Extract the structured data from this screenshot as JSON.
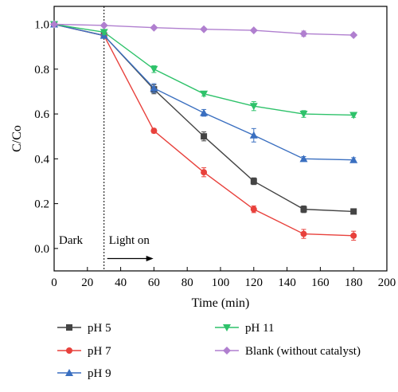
{
  "chart_data": {
    "type": "line",
    "xlabel": "Time (min)",
    "ylabel": "C/Co",
    "xlim": [
      0,
      200
    ],
    "ylim": [
      -0.1,
      1.08
    ],
    "xticks": [
      0,
      20,
      40,
      60,
      80,
      100,
      120,
      140,
      160,
      180,
      200
    ],
    "yticks": [
      0.0,
      0.2,
      0.4,
      0.6,
      0.8,
      1.0
    ],
    "grid": false,
    "legend_position": "bottom",
    "annotations": {
      "dark": "Dark",
      "light_on": "Light on",
      "divider_x": 30
    },
    "x": [
      0,
      30,
      60,
      90,
      120,
      150,
      180
    ],
    "series": [
      {
        "name": "pH 5",
        "marker": "square",
        "color": "#444444",
        "values": [
          1.0,
          0.95,
          0.71,
          0.5,
          0.3,
          0.175,
          0.165
        ],
        "errors": [
          0.0,
          0.01,
          0.02,
          0.02,
          0.015,
          0.015,
          0.01
        ]
      },
      {
        "name": "pH 7",
        "marker": "circle",
        "color": "#e8413c",
        "values": [
          1.0,
          0.95,
          0.525,
          0.34,
          0.175,
          0.065,
          0.057
        ],
        "errors": [
          0.0,
          0.01,
          0.01,
          0.02,
          0.015,
          0.02,
          0.02
        ]
      },
      {
        "name": "pH 9",
        "marker": "triangle-up",
        "color": "#3a6fc0",
        "values": [
          1.0,
          0.95,
          0.715,
          0.605,
          0.505,
          0.4,
          0.395
        ],
        "errors": [
          0.0,
          0.01,
          0.02,
          0.015,
          0.03,
          0.01,
          0.01
        ]
      },
      {
        "name": "pH 11",
        "marker": "triangle-down",
        "color": "#2ec26a",
        "values": [
          1.0,
          0.965,
          0.8,
          0.69,
          0.635,
          0.6,
          0.595
        ],
        "errors": [
          0.0,
          0.01,
          0.015,
          0.01,
          0.02,
          0.015,
          0.01
        ]
      },
      {
        "name": "Blank (without catalyst)",
        "marker": "diamond",
        "color": "#b07fcf",
        "values": [
          1.0,
          0.995,
          0.985,
          0.978,
          0.973,
          0.958,
          0.952
        ],
        "errors": [
          0.0,
          0.005,
          0.005,
          0.005,
          0.005,
          0.012,
          0.005
        ]
      }
    ]
  }
}
